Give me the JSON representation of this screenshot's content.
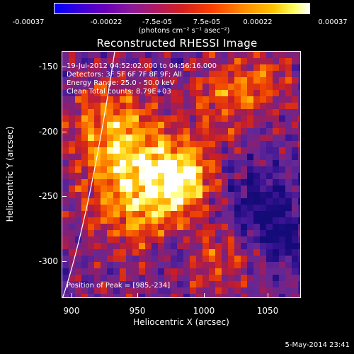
{
  "colorbar": {
    "ticks": [
      "-0.00037",
      "-0.00022",
      "-7.5e-05",
      "7.5e-05",
      "0.00022",
      "0.00037"
    ],
    "units": "(photons cm⁻² s⁻¹ asec⁻²)"
  },
  "title": "Reconstructed RHESSI Image",
  "info": {
    "time": "19-Jul-2012 04:52:02.000 to 04:56:16.000",
    "detectors": "Detectors: 3F 5F 6F 7F 8F 9F; All",
    "energy": "Energy Range: 25.0 - 50.0 keV",
    "clean": "Clean     Total counts: 8.79E+03",
    "peak": "Position of Peak = [985,-234]"
  },
  "axes": {
    "xlabel": "Heliocentric X (arcsec)",
    "ylabel": "Heliocentric Y (arcsec)",
    "xticks": [
      "900",
      "950",
      "1000",
      "1050"
    ],
    "yticks": [
      "-150",
      "-200",
      "-250",
      "-300"
    ]
  },
  "datestamp": "5-May-2014 23:41"
}
